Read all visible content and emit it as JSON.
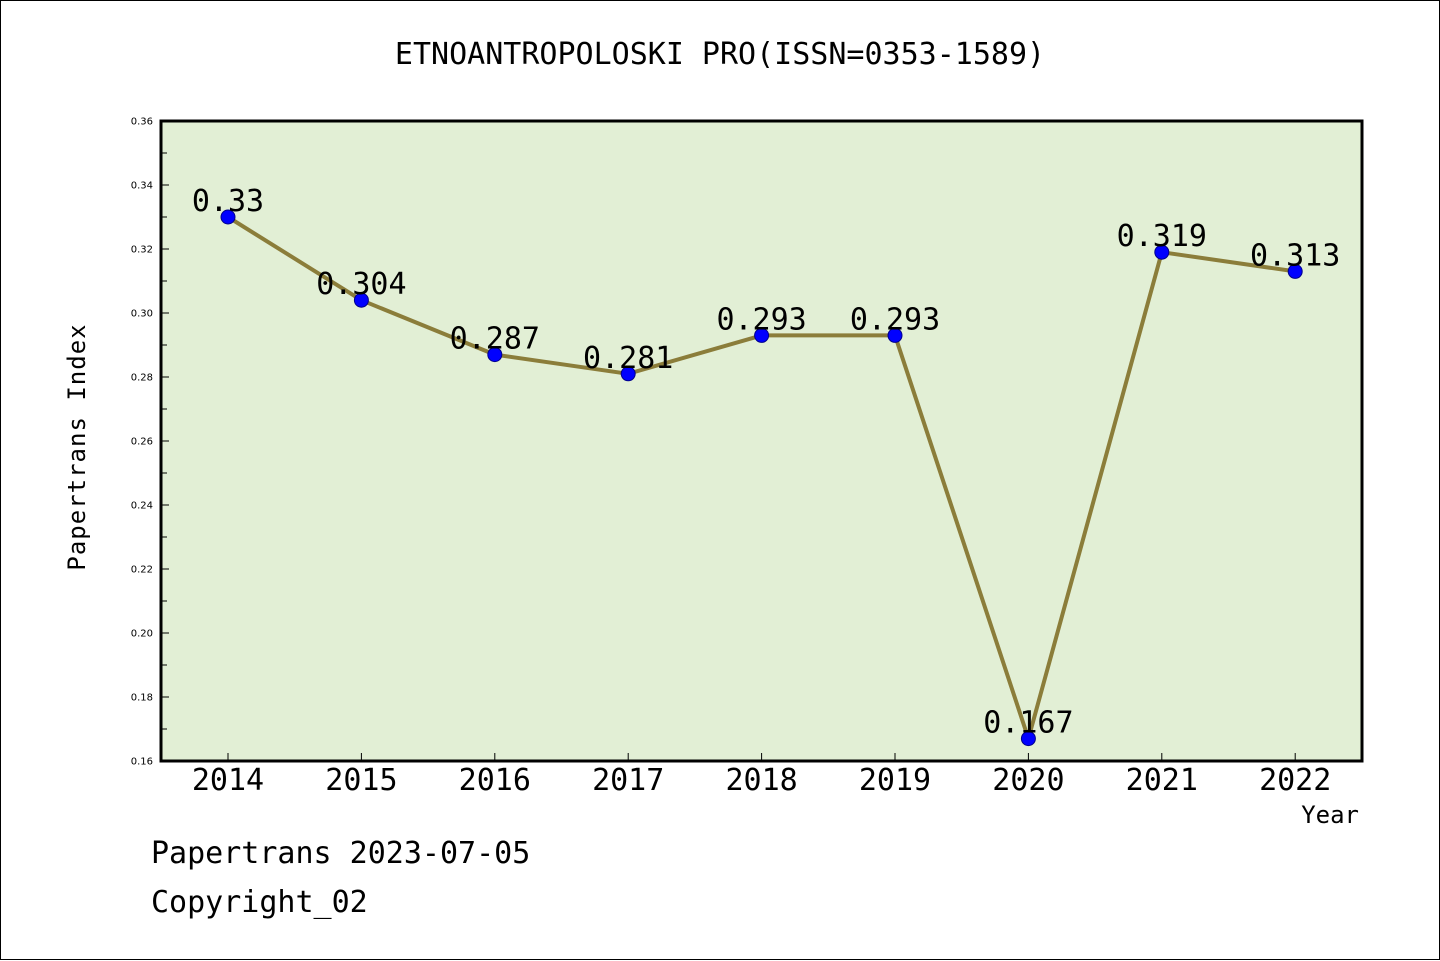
{
  "page": {
    "title": "ETNOANTROPOLOSKI PRO(ISSN=0353-1589)",
    "footer_line1": "Papertrans 2023-07-05",
    "footer_line2": "Copyright_02"
  },
  "chart_data": {
    "type": "line",
    "title": "ETNOANTROPOLOSKI PRO(ISSN=0353-1589)",
    "xlabel": "Year",
    "ylabel": "Papertrans Index",
    "categories": [
      "2014",
      "2015",
      "2016",
      "2017",
      "2018",
      "2019",
      "2020",
      "2021",
      "2022"
    ],
    "values": [
      0.33,
      0.304,
      0.287,
      0.281,
      0.293,
      0.293,
      0.167,
      0.319,
      0.313
    ],
    "data_labels": [
      "0.33",
      "0.304",
      "0.287",
      "0.281",
      "0.293",
      "0.293",
      "0.167",
      "0.319",
      "0.313"
    ],
    "ylim": [
      0.16,
      0.36
    ],
    "yticks": [
      "0.16",
      "0.18",
      "0.20",
      "0.22",
      "0.24",
      "0.26",
      "0.28",
      "0.30",
      "0.32",
      "0.34",
      "0.36"
    ],
    "grid": false,
    "legend": "none",
    "colors": {
      "plot_background": "#e2efd5",
      "line": "#8b7d3a",
      "marker": "#0000ff"
    }
  }
}
